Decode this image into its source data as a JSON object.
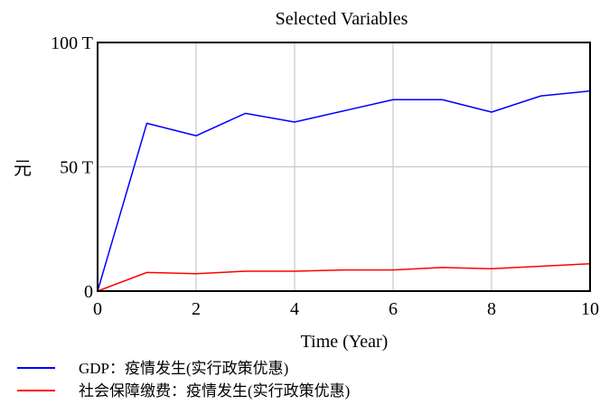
{
  "chart_data": {
    "type": "line",
    "title": "Selected Variables",
    "xlabel": "Time (Year)",
    "ylabel": "元",
    "x": [
      0,
      1,
      2,
      3,
      4,
      5,
      6,
      7,
      8,
      9,
      10
    ],
    "xlim": [
      0,
      10
    ],
    "ylim": [
      0,
      100
    ],
    "x_ticks": [
      0,
      2,
      4,
      6,
      8,
      10
    ],
    "x_tick_labels": [
      "0",
      "2",
      "4",
      "6",
      "8",
      "10"
    ],
    "y_ticks": [
      0,
      50,
      100
    ],
    "y_tick_labels": [
      "0",
      "50 T",
      "100 T"
    ],
    "grid": true,
    "legend_position": "bottom-left",
    "series": [
      {
        "name": "GDP：疫情发生(实行政策优惠)",
        "color": "#0000ff",
        "values": [
          0,
          67.5,
          62.5,
          71.5,
          68,
          72.5,
          77,
          77,
          72,
          78.5,
          80.5
        ]
      },
      {
        "name": "社会保障缴费：疫情发生(实行政策优惠)",
        "color": "#ff0000",
        "values": [
          0,
          7.5,
          7,
          8,
          8,
          8.5,
          8.5,
          9.5,
          9,
          10,
          11
        ]
      }
    ]
  }
}
